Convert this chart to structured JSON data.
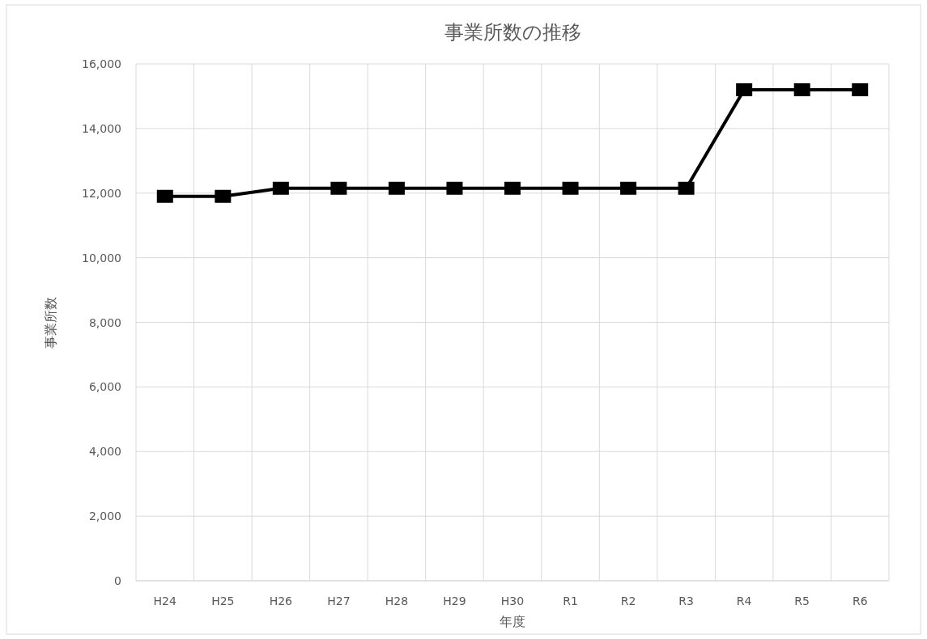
{
  "chart_data": {
    "type": "line",
    "title": "事業所数の推移",
    "xlabel": "年度",
    "ylabel": "事業所数",
    "categories": [
      "H24",
      "H25",
      "H26",
      "H27",
      "H28",
      "H29",
      "H30",
      "R1",
      "R2",
      "R3",
      "R4",
      "R5",
      "R6"
    ],
    "series": [
      {
        "color": "#000000",
        "values": [
          11900,
          11900,
          12150,
          12150,
          12150,
          12150,
          12150,
          12150,
          12150,
          12150,
          15200,
          15200,
          15200
        ]
      }
    ],
    "ylim": [
      0,
      16000
    ],
    "yticks": [
      {
        "value": 0,
        "label": "0"
      },
      {
        "value": 2000,
        "label": "2,000"
      },
      {
        "value": 4000,
        "label": "4,000"
      },
      {
        "value": 6000,
        "label": "6,000"
      },
      {
        "value": 8000,
        "label": "8,000"
      },
      {
        "value": 10000,
        "label": "10,000"
      },
      {
        "value": 12000,
        "label": "12,000"
      },
      {
        "value": 14000,
        "label": "14,000"
      },
      {
        "value": 16000,
        "label": "16,000"
      }
    ],
    "grid": true,
    "marker": "square",
    "line_style": "solid"
  }
}
